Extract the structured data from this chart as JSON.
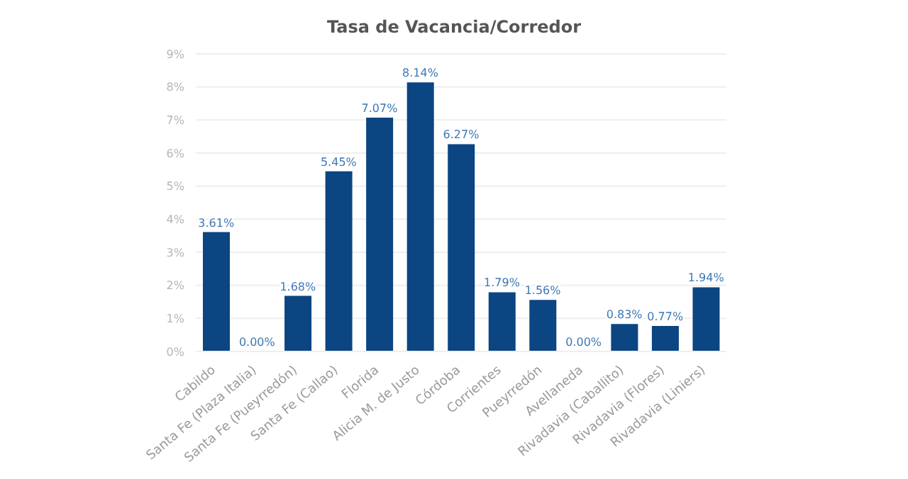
{
  "chart_data": {
    "type": "bar",
    "title": "Tasa de Vacancia/Corredor",
    "categories": [
      "Cabildo",
      "Santa Fe (Plaza Italia)",
      "Santa Fe (Pueyrredón)",
      "Santa Fe (Callao)",
      "Florida",
      "Alicia M. de Justo",
      "Córdoba",
      "Corrientes",
      "Pueyrredón",
      "Avellaneda",
      "Rivadavia (Caballito)",
      "Rivadavia (Flores)",
      "Rivadavia (Liniers)"
    ],
    "values": [
      3.61,
      0,
      1.68,
      5.45,
      7.07,
      8.14,
      6.27,
      1.79,
      1.56,
      0,
      0.83,
      0.77,
      1.94
    ],
    "value_labels": [
      "3.61%",
      "0.00%",
      "1.68%",
      "5.45%",
      "7.07%",
      "8.14%",
      "6.27%",
      "1.79%",
      "1.56%",
      "0.00%",
      "0.83%",
      "0.77%",
      "1.94%"
    ],
    "color": "#0b4582",
    "ylim": [
      0,
      9
    ],
    "yticks": [
      {
        "value": 0,
        "label": "0%"
      },
      {
        "value": 1,
        "label": "1%"
      },
      {
        "value": 2,
        "label": "2%"
      },
      {
        "value": 3,
        "label": "3%"
      },
      {
        "value": 4,
        "label": "4%"
      },
      {
        "value": 5,
        "label": "5%"
      },
      {
        "value": 6,
        "label": "6%"
      },
      {
        "value": 7,
        "label": "7%"
      },
      {
        "value": 8,
        "label": "8%"
      },
      {
        "value": 9,
        "label": "9%"
      }
    ],
    "grid": "y",
    "legend": false
  }
}
